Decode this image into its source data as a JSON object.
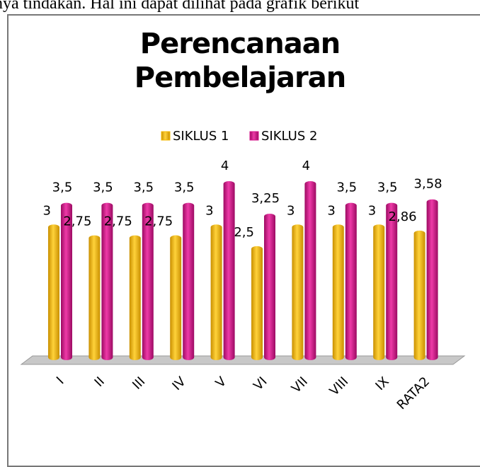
{
  "page_text": "nya tindakan. Hal ini dapat dilihat pada grafik berikut",
  "chart_data": {
    "type": "bar",
    "title": "Perencanaan Pembelajaran",
    "categories": [
      "I",
      "II",
      "III",
      "IV",
      "V",
      "VI",
      "VII",
      "VIII",
      "IX",
      "RATA2"
    ],
    "series": [
      {
        "name": "SIKLUS 1",
        "color": "#f5b800",
        "values": [
          3,
          2.75,
          2.75,
          2.75,
          3,
          2.5,
          3,
          3,
          3,
          2.86
        ],
        "value_labels": [
          "3",
          "2,75",
          "2,75",
          "2,75",
          "3",
          "2,5",
          "3",
          "3",
          "3",
          "2,86"
        ]
      },
      {
        "name": "SIKLUS 2",
        "color": "#d6138a",
        "values": [
          3.5,
          3.5,
          3.5,
          3.5,
          4,
          3.25,
          4,
          3.5,
          3.5,
          3.58
        ],
        "value_labels": [
          "3,5",
          "3,5",
          "3,5",
          "3,5",
          "4",
          "3,25",
          "4",
          "3,5",
          "3,5",
          "3,58"
        ]
      }
    ],
    "ylim": [
      0,
      4
    ],
    "legend": "top"
  }
}
